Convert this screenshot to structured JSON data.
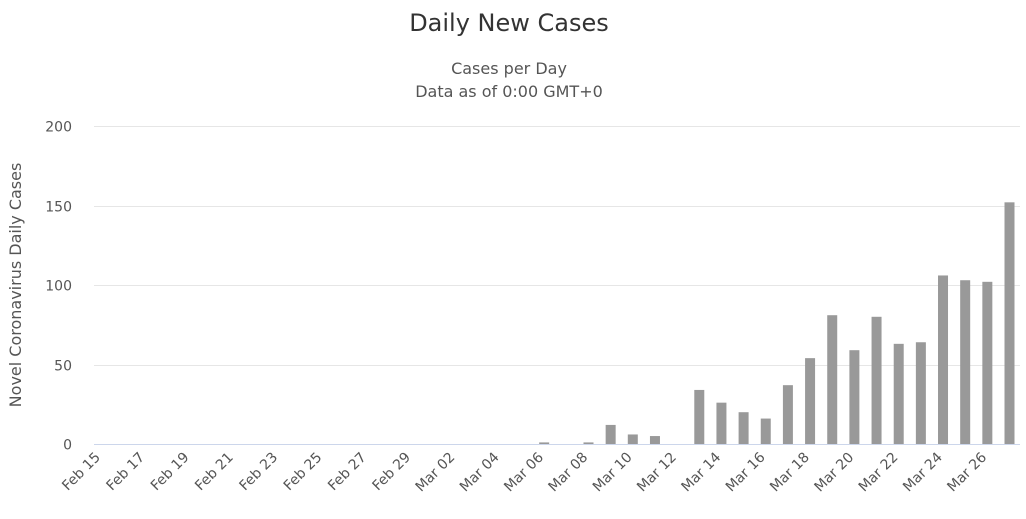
{
  "chart_data": {
    "type": "bar",
    "title": "Daily New Cases",
    "subtitle": [
      "Cases per Day",
      "Data as of 0:00 GMT+0"
    ],
    "xlabel": "",
    "ylabel": "Novel Coronavirus Daily Cases",
    "ylim": [
      0,
      200
    ],
    "yticks": [
      0,
      50,
      100,
      150,
      200
    ],
    "grid": true,
    "bar_color": "#999999",
    "categories": [
      "Feb 15",
      "Feb 16",
      "Feb 17",
      "Feb 18",
      "Feb 19",
      "Feb 20",
      "Feb 21",
      "Feb 22",
      "Feb 23",
      "Feb 24",
      "Feb 25",
      "Feb 26",
      "Feb 27",
      "Feb 28",
      "Feb 29",
      "Mar 01",
      "Mar 02",
      "Mar 03",
      "Mar 04",
      "Mar 05",
      "Mar 06",
      "Mar 07",
      "Mar 08",
      "Mar 09",
      "Mar 10",
      "Mar 11",
      "Mar 12",
      "Mar 13",
      "Mar 14",
      "Mar 15",
      "Mar 16",
      "Mar 17",
      "Mar 18",
      "Mar 19",
      "Mar 20",
      "Mar 21",
      "Mar 22",
      "Mar 23",
      "Mar 24",
      "Mar 25",
      "Mar 26",
      "Mar 27"
    ],
    "tick_labels": [
      "Feb 15",
      "Feb 17",
      "Feb 19",
      "Feb 21",
      "Feb 23",
      "Feb 25",
      "Feb 27",
      "Feb 29",
      "Mar 02",
      "Mar 04",
      "Mar 06",
      "Mar 08",
      "Mar 10",
      "Mar 12",
      "Mar 14",
      "Mar 16",
      "Mar 18",
      "Mar 20",
      "Mar 22",
      "Mar 24",
      "Mar 26"
    ],
    "values": [
      0,
      0,
      0,
      0,
      0,
      0,
      0,
      0,
      0,
      0,
      0,
      0,
      0,
      0,
      0,
      0,
      0,
      0,
      0,
      0,
      1,
      0,
      1,
      12,
      6,
      5,
      0,
      34,
      26,
      20,
      16,
      37,
      54,
      81,
      59,
      80,
      63,
      64,
      106,
      103,
      102,
      152
    ]
  }
}
